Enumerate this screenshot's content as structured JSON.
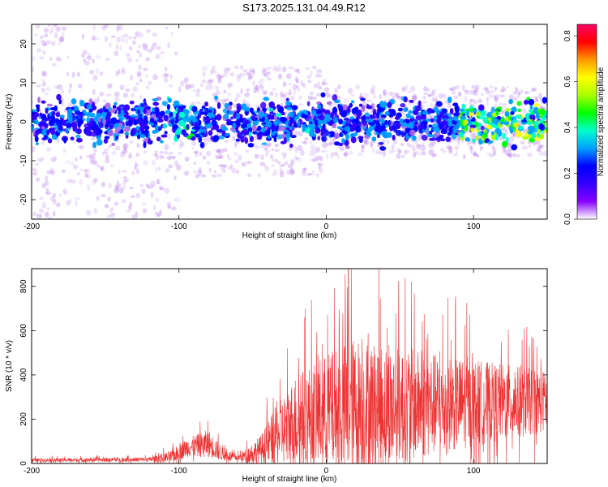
{
  "title": "S173.2025.131.04.49.R12",
  "chart_data": [
    {
      "type": "heatmap",
      "xlabel": "Height of straight line (km)",
      "ylabel": "Frequency (Hz)",
      "xlim": [
        -200,
        150
      ],
      "ylim": [
        -25,
        25
      ],
      "xticks": [
        -200,
        -100,
        0,
        100
      ],
      "yticks": [
        -20,
        -10,
        0,
        10,
        20
      ],
      "colorbar": {
        "label": "Normalized spectral amplitude",
        "range": [
          0.0,
          0.85
        ],
        "ticks": [
          0.0,
          0.2,
          0.4,
          0.6,
          0.8
        ],
        "colors": [
          "#ffffff",
          "#8800ff",
          "#3300ff",
          "#0000ff",
          "#00a0ff",
          "#00ffcc",
          "#00ff00",
          "#aaff00",
          "#ffff00",
          "#ff9900",
          "#ff0000",
          "#ff0066"
        ]
      },
      "description": "Energy concentrated near 0 Hz along the full height range, band roughly +/-5 Hz, peak amplitude increasing toward 100-150 km"
    },
    {
      "type": "line",
      "xlabel": "Height of straight line (km)",
      "ylabel": "SNR (10 * v/v)",
      "xlim": [
        -200,
        150
      ],
      "ylim": [
        0,
        880
      ],
      "xticks": [
        -200,
        -100,
        0,
        100
      ],
      "yticks": [
        0,
        200,
        400,
        600,
        800
      ],
      "color": "#ee3333",
      "profile": [
        {
          "x": -200,
          "base": 15,
          "amp": 12
        },
        {
          "x": -120,
          "base": 18,
          "amp": 14
        },
        {
          "x": -105,
          "base": 30,
          "amp": 40
        },
        {
          "x": -95,
          "base": 70,
          "amp": 60
        },
        {
          "x": -80,
          "base": 90,
          "amp": 90
        },
        {
          "x": -70,
          "base": 40,
          "amp": 40
        },
        {
          "x": -60,
          "base": 25,
          "amp": 20
        },
        {
          "x": -45,
          "base": 60,
          "amp": 90
        },
        {
          "x": -35,
          "base": 120,
          "amp": 180
        },
        {
          "x": -20,
          "base": 200,
          "amp": 300
        },
        {
          "x": 0,
          "base": 230,
          "amp": 380
        },
        {
          "x": 20,
          "base": 260,
          "amp": 450
        },
        {
          "x": 50,
          "base": 260,
          "amp": 380
        },
        {
          "x": 90,
          "base": 270,
          "amp": 300
        },
        {
          "x": 150,
          "base": 280,
          "amp": 200
        }
      ],
      "peak": {
        "x": 15,
        "y": 880
      }
    }
  ]
}
